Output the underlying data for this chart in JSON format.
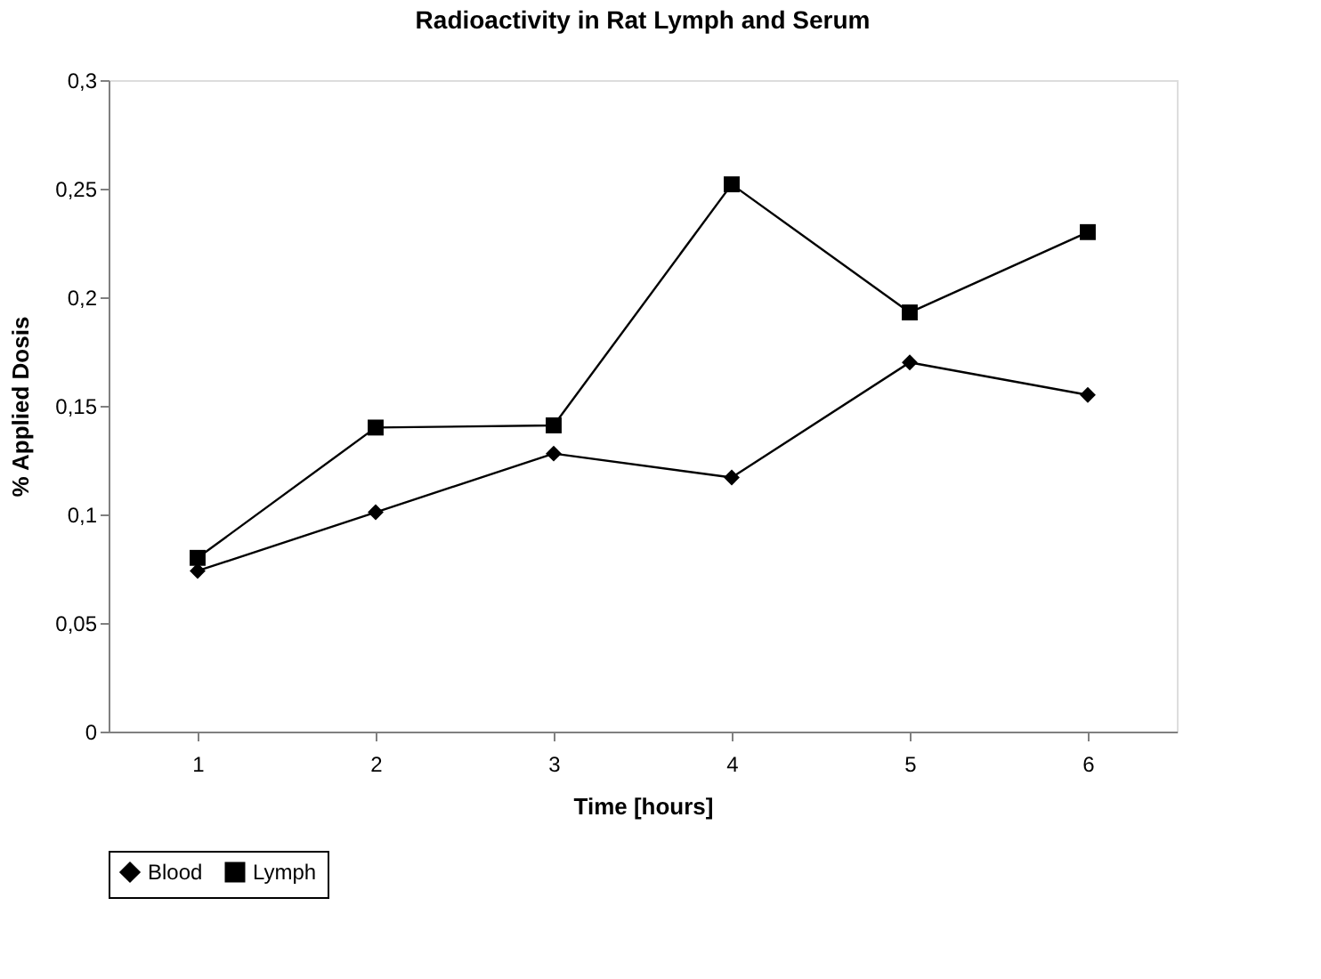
{
  "chart_data": {
    "type": "line",
    "title": "Radioactivity in Rat Lymph and Serum",
    "xlabel": "Time [hours]",
    "ylabel": "% Applied Dosis",
    "categories": [
      "1",
      "2",
      "3",
      "4",
      "5",
      "6"
    ],
    "series": [
      {
        "name": "Blood",
        "color": "#000000",
        "marker": "diamond",
        "values": [
          0.074,
          0.101,
          0.128,
          0.117,
          0.17,
          0.155
        ]
      },
      {
        "name": "Lymph",
        "color": "#000000",
        "marker": "square",
        "values": [
          0.08,
          0.14,
          0.141,
          0.252,
          0.193,
          0.23
        ]
      }
    ],
    "ylim": [
      0,
      0.3
    ],
    "yticks": [
      {
        "value": 0,
        "label": "0"
      },
      {
        "value": 0.05,
        "label": "0,05"
      },
      {
        "value": 0.1,
        "label": "0,1"
      },
      {
        "value": 0.15,
        "label": "0,15"
      },
      {
        "value": 0.2,
        "label": "0,2"
      },
      {
        "value": 0.25,
        "label": "0,25"
      },
      {
        "value": 0.3,
        "label": "0,3"
      }
    ],
    "grid": false,
    "legend": "bottom",
    "line_style": "solid"
  }
}
